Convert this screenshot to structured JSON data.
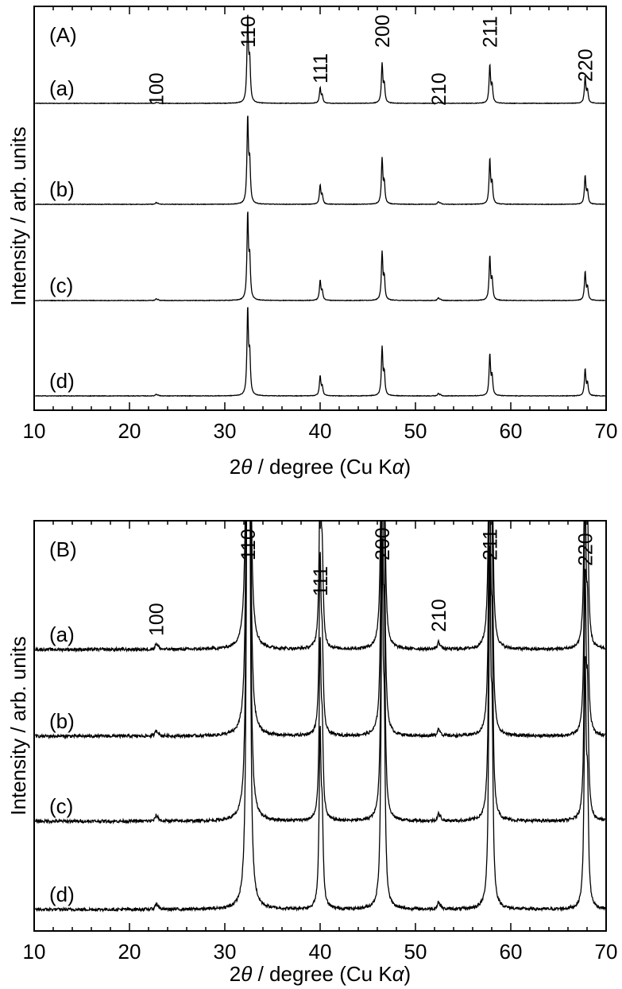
{
  "chart_data": [
    {
      "type": "line",
      "panel_label": "(A)",
      "xlabel_main": "2",
      "xlabel_theta": "θ",
      "xlabel_rest": " / degree (Cu K",
      "xlabel_alpha": "α",
      "xlabel_close": ")",
      "ylabel": "Intensity / arb. units",
      "xlim": [
        10,
        70
      ],
      "xticks": [
        "10",
        "20",
        "30",
        "40",
        "50",
        "60",
        "70"
      ],
      "grid": false,
      "peaks": [
        {
          "label": "100",
          "x": 22.8,
          "rel": 0.015
        },
        {
          "label": "110",
          "x": 32.4,
          "rel": 1.0
        },
        {
          "label": "111",
          "x": 40.0,
          "rel": 0.2
        },
        {
          "label": "200",
          "x": 46.5,
          "rel": 0.48
        },
        {
          "label": "210",
          "x": 52.4,
          "rel": 0.02
        },
        {
          "label": "211",
          "x": 57.8,
          "rel": 0.45
        },
        {
          "label": "220",
          "x": 67.8,
          "rel": 0.32
        }
      ],
      "series": [
        {
          "name": "(a)",
          "intensities": [
            0.01,
            1.0,
            0.18,
            0.45,
            0.01,
            0.44,
            0.31
          ]
        },
        {
          "name": "(b)",
          "intensities": [
            0.02,
            1.0,
            0.22,
            0.52,
            0.03,
            0.52,
            0.33
          ]
        },
        {
          "name": "(c)",
          "intensities": [
            0.02,
            1.0,
            0.23,
            0.55,
            0.03,
            0.51,
            0.33
          ]
        },
        {
          "name": "(d)",
          "intensities": [
            0.02,
            1.0,
            0.23,
            0.55,
            0.03,
            0.48,
            0.31
          ]
        }
      ]
    },
    {
      "type": "line",
      "panel_label": "(B)",
      "xlabel_main": "2",
      "xlabel_theta": "θ",
      "xlabel_rest": " / degree (Cu K",
      "xlabel_alpha": "α",
      "xlabel_close": ")",
      "ylabel": "Intensity / arb. units",
      "xlim": [
        10,
        70
      ],
      "xticks": [
        "10",
        "20",
        "30",
        "40",
        "50",
        "60",
        "70"
      ],
      "grid": false,
      "note": "vertically expanded view; strong peaks clipped at top of frame",
      "peaks": [
        {
          "label": "100",
          "x": 22.8,
          "rel": 0.08
        },
        {
          "label": "110",
          "x": 32.4,
          "rel": 10.0
        },
        {
          "label": "111",
          "x": 40.0,
          "rel": 2.5
        },
        {
          "label": "200",
          "x": 46.5,
          "rel": 5.0
        },
        {
          "label": "210",
          "x": 52.4,
          "rel": 0.1
        },
        {
          "label": "211",
          "x": 57.8,
          "rel": 5.0
        },
        {
          "label": "220",
          "x": 67.8,
          "rel": 3.5
        }
      ],
      "series": [
        {
          "name": "(a)"
        },
        {
          "name": "(b)"
        },
        {
          "name": "(c)"
        },
        {
          "name": "(d)"
        }
      ]
    }
  ]
}
